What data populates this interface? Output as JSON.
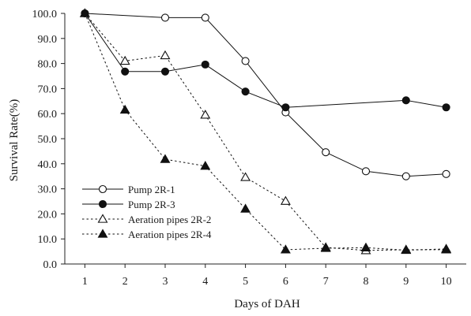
{
  "chart_data": {
    "type": "line",
    "title": "",
    "xlabel": "Days of DAH",
    "ylabel": "Survival Rate(%)",
    "x": [
      1,
      2,
      3,
      4,
      5,
      6,
      7,
      8,
      9,
      10
    ],
    "xlim": [
      0.5,
      10.5
    ],
    "ylim": [
      0,
      100
    ],
    "y_ticks": [
      "0.0",
      "10.0",
      "20.0",
      "30.0",
      "40.0",
      "50.0",
      "60.0",
      "70.0",
      "80.0",
      "90.0",
      "100.0"
    ],
    "x_ticks": [
      "1",
      "2",
      "3",
      "4",
      "5",
      "6",
      "7",
      "8",
      "9",
      "10"
    ],
    "grid": false,
    "legend_position": "bottom-left",
    "series": [
      {
        "name": "Pump 2R-1",
        "line_style": "solid",
        "marker": "open-circle",
        "x": [
          1,
          3,
          4,
          5,
          6,
          7,
          8,
          9,
          10
        ],
        "values": [
          100.0,
          98.3,
          98.3,
          81.0,
          60.5,
          44.6,
          37.0,
          35.0,
          35.9
        ]
      },
      {
        "name": "Pump 2R-3",
        "line_style": "solid",
        "marker": "filled-circle",
        "x": [
          1,
          2,
          3,
          4,
          5,
          6,
          9,
          10
        ],
        "values": [
          100.0,
          76.8,
          76.8,
          79.6,
          68.8,
          62.5,
          65.3,
          62.5
        ]
      },
      {
        "name": "Aeration pipes 2R-2",
        "line_style": "dotted",
        "marker": "open-triangle",
        "x": [
          1,
          2,
          3,
          4,
          5,
          6,
          7,
          8,
          9,
          10
        ],
        "values": [
          100.0,
          81.0,
          83.2,
          59.5,
          34.6,
          25.1,
          6.6,
          5.4,
          5.7,
          5.7
        ]
      },
      {
        "name": "Aeration pipes 2R-4",
        "line_style": "dotted",
        "marker": "filled-triangle",
        "x": [
          1,
          2,
          3,
          4,
          5,
          6,
          7,
          8,
          9,
          10
        ],
        "values": [
          100.0,
          61.5,
          41.8,
          39.1,
          22.0,
          5.7,
          6.3,
          6.5,
          5.5,
          6.0
        ]
      }
    ]
  }
}
